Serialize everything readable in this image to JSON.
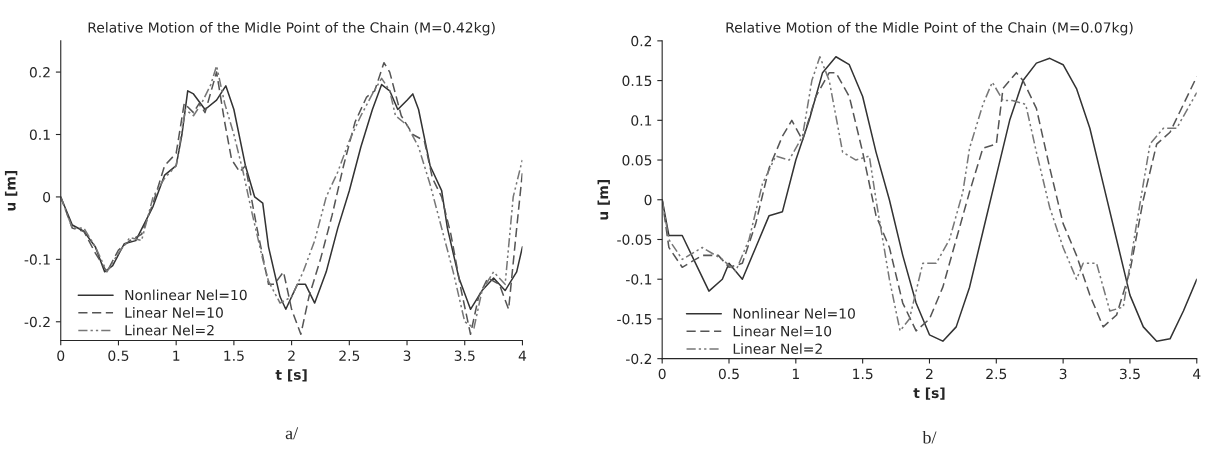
{
  "chart_data": [
    {
      "type": "line",
      "title": "Relative Motion of the Midle Point of the Chain (M=0.42kg)",
      "xlabel": "t [s]",
      "ylabel": "u [m]",
      "annotations": [
        "a/"
      ],
      "xlim": [
        0,
        4
      ],
      "xticks": [
        0,
        0.5,
        1,
        1.5,
        2,
        2.5,
        3,
        3.5,
        4
      ],
      "ylim": [
        -0.23,
        0.25
      ],
      "yticks": [
        -0.2,
        -0.1,
        0,
        0.1,
        0.2
      ],
      "grid": false,
      "legend": "bottom left",
      "series": [
        {
          "name": "Nonlinear Nel=10",
          "color": "#333333",
          "line_style": "solid",
          "x": [
            0,
            0.1,
            0.2,
            0.3,
            0.38,
            0.45,
            0.55,
            0.65,
            0.8,
            0.9,
            1.0,
            1.05,
            1.1,
            1.15,
            1.25,
            1.35,
            1.43,
            1.5,
            1.6,
            1.68,
            1.75,
            1.8,
            1.9,
            1.95,
            2.05,
            2.12,
            2.2,
            2.3,
            2.4,
            2.5,
            2.6,
            2.7,
            2.78,
            2.85,
            2.92,
            3.0,
            3.05,
            3.1,
            3.2,
            3.3,
            3.35,
            3.45,
            3.55,
            3.65,
            3.75,
            3.85,
            3.95,
            4.0
          ],
          "values": [
            0,
            -0.045,
            -0.055,
            -0.08,
            -0.12,
            -0.11,
            -0.075,
            -0.07,
            -0.015,
            0.035,
            0.05,
            0.1,
            0.17,
            0.165,
            0.14,
            0.155,
            0.178,
            0.14,
            0.05,
            0.0,
            -0.01,
            -0.08,
            -0.16,
            -0.18,
            -0.14,
            -0.14,
            -0.17,
            -0.12,
            -0.05,
            0.01,
            0.08,
            0.14,
            0.18,
            0.17,
            0.14,
            0.155,
            0.165,
            0.14,
            0.05,
            0.01,
            -0.05,
            -0.13,
            -0.18,
            -0.15,
            -0.13,
            -0.15,
            -0.12,
            -0.08
          ]
        },
        {
          "name": "Linear Nel=10",
          "color": "#555555",
          "line_style": "dashed",
          "x": [
            0,
            0.1,
            0.2,
            0.3,
            0.4,
            0.5,
            0.6,
            0.7,
            0.8,
            0.9,
            1.0,
            1.07,
            1.15,
            1.2,
            1.25,
            1.35,
            1.42,
            1.48,
            1.55,
            1.6,
            1.7,
            1.8,
            1.85,
            1.93,
            2.0,
            2.08,
            2.15,
            2.25,
            2.35,
            2.45,
            2.55,
            2.65,
            2.72,
            2.8,
            2.85,
            2.95,
            3.05,
            3.15,
            3.22,
            3.3,
            3.38,
            3.47,
            3.55,
            3.62,
            3.7,
            3.8,
            3.88,
            3.95,
            4.0
          ],
          "values": [
            0,
            -0.05,
            -0.055,
            -0.09,
            -0.12,
            -0.085,
            -0.07,
            -0.06,
            -0.01,
            0.05,
            0.07,
            0.15,
            0.135,
            0.15,
            0.135,
            0.2,
            0.12,
            0.06,
            0.04,
            0.05,
            -0.05,
            -0.14,
            -0.14,
            -0.12,
            -0.18,
            -0.22,
            -0.16,
            -0.1,
            -0.03,
            0.05,
            0.12,
            0.16,
            0.17,
            0.215,
            0.2,
            0.13,
            0.1,
            0.09,
            0.03,
            0.0,
            -0.06,
            -0.15,
            -0.22,
            -0.16,
            -0.13,
            -0.14,
            -0.18,
            -0.05,
            0.04
          ]
        },
        {
          "name": "Linear Nel=2",
          "color": "#777777",
          "line_style": "dashdot",
          "x": [
            0,
            0.1,
            0.2,
            0.3,
            0.4,
            0.5,
            0.6,
            0.7,
            0.8,
            0.9,
            1.0,
            1.08,
            1.15,
            1.22,
            1.3,
            1.35,
            1.42,
            1.5,
            1.58,
            1.65,
            1.75,
            1.8,
            1.9,
            2.0,
            2.1,
            2.2,
            2.3,
            2.4,
            2.5,
            2.6,
            2.7,
            2.78,
            2.85,
            2.9,
            3.0,
            3.1,
            3.2,
            3.3,
            3.4,
            3.5,
            3.58,
            3.65,
            3.75,
            3.85,
            3.92,
            4.0
          ],
          "values": [
            0,
            -0.05,
            -0.05,
            -0.08,
            -0.12,
            -0.09,
            -0.065,
            -0.07,
            0.0,
            0.03,
            0.05,
            0.14,
            0.13,
            0.15,
            0.18,
            0.21,
            0.15,
            0.1,
            0.04,
            -0.02,
            -0.1,
            -0.135,
            -0.17,
            -0.16,
            -0.12,
            -0.07,
            0.0,
            0.04,
            0.09,
            0.13,
            0.165,
            0.19,
            0.17,
            0.13,
            0.115,
            0.08,
            0.02,
            -0.05,
            -0.12,
            -0.2,
            -0.21,
            -0.15,
            -0.12,
            -0.14,
            0.0,
            0.06
          ]
        }
      ]
    },
    {
      "type": "line",
      "title": "Relative Motion of the Midle Point of the Chain (M=0.07kg)",
      "xlabel": "t [s]",
      "ylabel": "u [m]",
      "annotations": [
        "b/"
      ],
      "xlim": [
        0,
        4
      ],
      "xticks": [
        0,
        0.5,
        1,
        1.5,
        2,
        2.5,
        3,
        3.5,
        4
      ],
      "ylim": [
        -0.2,
        0.2
      ],
      "yticks": [
        -0.2,
        -0.15,
        -0.1,
        -0.05,
        0,
        0.05,
        0.1,
        0.15,
        0.2
      ],
      "grid": false,
      "legend": "bottom left",
      "series": [
        {
          "name": "Nonlinear Nel=10",
          "color": "#333333",
          "line_style": "solid",
          "x": [
            0,
            0.05,
            0.15,
            0.25,
            0.35,
            0.45,
            0.5,
            0.6,
            0.7,
            0.8,
            0.9,
            1.0,
            1.1,
            1.2,
            1.3,
            1.4,
            1.5,
            1.6,
            1.7,
            1.8,
            1.9,
            2.0,
            2.1,
            2.2,
            2.3,
            2.4,
            2.5,
            2.6,
            2.7,
            2.8,
            2.9,
            3.0,
            3.1,
            3.2,
            3.3,
            3.4,
            3.5,
            3.6,
            3.7,
            3.8,
            3.9,
            4.0
          ],
          "values": [
            0,
            -0.045,
            -0.045,
            -0.08,
            -0.115,
            -0.1,
            -0.08,
            -0.1,
            -0.06,
            -0.02,
            -0.015,
            0.05,
            0.1,
            0.16,
            0.18,
            0.17,
            0.13,
            0.06,
            0.0,
            -0.07,
            -0.13,
            -0.17,
            -0.178,
            -0.16,
            -0.11,
            -0.04,
            0.03,
            0.1,
            0.15,
            0.172,
            0.178,
            0.17,
            0.14,
            0.09,
            0.02,
            -0.05,
            -0.12,
            -0.16,
            -0.178,
            -0.175,
            -0.14,
            -0.1
          ]
        },
        {
          "name": "Linear Nel=10",
          "color": "#555555",
          "line_style": "dashed",
          "x": [
            0,
            0.05,
            0.15,
            0.3,
            0.42,
            0.5,
            0.6,
            0.7,
            0.8,
            0.9,
            0.97,
            1.05,
            1.15,
            1.25,
            1.3,
            1.4,
            1.5,
            1.6,
            1.7,
            1.8,
            1.9,
            2.0,
            2.1,
            2.2,
            2.3,
            2.4,
            2.5,
            2.55,
            2.65,
            2.7,
            2.8,
            2.9,
            3.0,
            3.1,
            3.2,
            3.3,
            3.4,
            3.5,
            3.6,
            3.7,
            3.8,
            3.9,
            4.0
          ],
          "values": [
            0,
            -0.06,
            -0.085,
            -0.07,
            -0.07,
            -0.085,
            -0.08,
            -0.03,
            0.04,
            0.08,
            0.1,
            0.075,
            0.13,
            0.16,
            0.16,
            0.13,
            0.06,
            -0.02,
            -0.06,
            -0.13,
            -0.165,
            -0.15,
            -0.11,
            -0.05,
            0.01,
            0.065,
            0.07,
            0.14,
            0.16,
            0.15,
            0.115,
            0.04,
            -0.03,
            -0.07,
            -0.12,
            -0.16,
            -0.145,
            -0.09,
            0.0,
            0.07,
            0.085,
            0.12,
            0.155
          ]
        },
        {
          "name": "Linear Nel=2",
          "color": "#777777",
          "line_style": "dashdot",
          "x": [
            0,
            0.05,
            0.15,
            0.3,
            0.45,
            0.55,
            0.65,
            0.75,
            0.85,
            0.95,
            1.05,
            1.12,
            1.18,
            1.25,
            1.35,
            1.45,
            1.55,
            1.6,
            1.7,
            1.78,
            1.85,
            1.95,
            2.05,
            2.15,
            2.25,
            2.3,
            2.4,
            2.47,
            2.55,
            2.62,
            2.72,
            2.8,
            2.9,
            3.0,
            3.1,
            3.15,
            3.25,
            3.35,
            3.45,
            3.55,
            3.65,
            3.75,
            3.85,
            3.95,
            4.0
          ],
          "values": [
            0,
            -0.05,
            -0.075,
            -0.06,
            -0.075,
            -0.09,
            -0.05,
            0.02,
            0.055,
            0.05,
            0.08,
            0.15,
            0.18,
            0.15,
            0.06,
            0.05,
            0.055,
            0.0,
            -0.1,
            -0.165,
            -0.15,
            -0.08,
            -0.08,
            -0.05,
            0.01,
            0.065,
            0.12,
            0.148,
            0.125,
            0.125,
            0.12,
            0.06,
            -0.01,
            -0.06,
            -0.1,
            -0.08,
            -0.08,
            -0.14,
            -0.135,
            -0.03,
            0.07,
            0.09,
            0.09,
            0.12,
            0.135
          ]
        }
      ]
    }
  ]
}
